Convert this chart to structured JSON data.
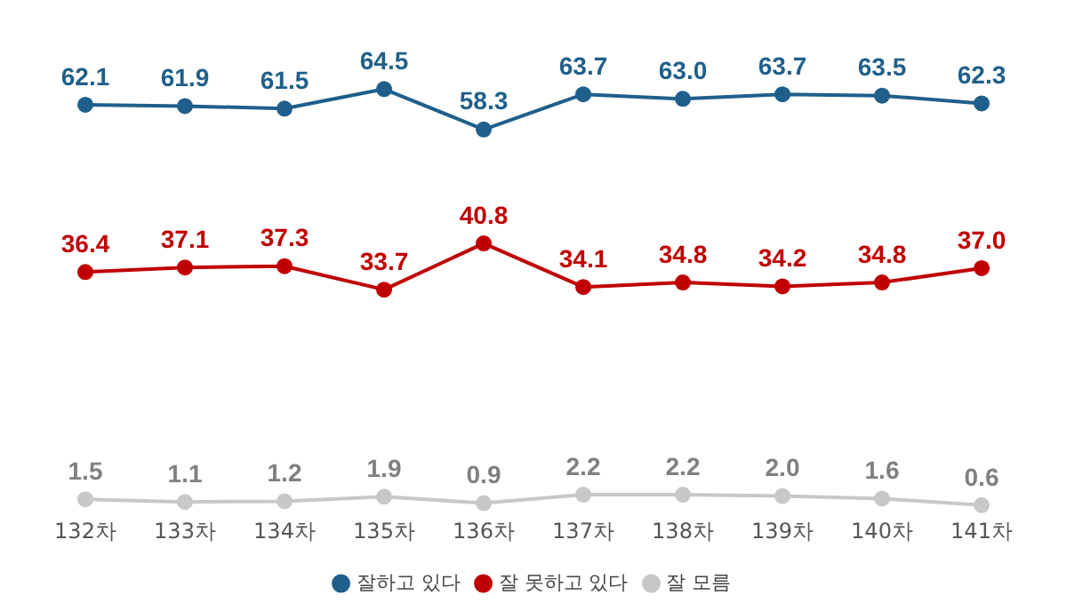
{
  "chart_data": {
    "type": "line",
    "categories": [
      "132차",
      "133차",
      "134차",
      "135차",
      "136차",
      "137차",
      "138차",
      "139차",
      "140차",
      "141차"
    ],
    "series": [
      {
        "name": "잘하고 있다",
        "color": "#1f5f8b",
        "values": [
          62.1,
          61.9,
          61.5,
          64.5,
          58.3,
          63.7,
          63.0,
          63.7,
          63.5,
          62.3
        ],
        "value_labels": [
          "62.1",
          "61.9",
          "61.5",
          "64.5",
          "58.3",
          "63.7",
          "63.0",
          "63.7",
          "63.5",
          "62.3"
        ]
      },
      {
        "name": "잘 못하고 있다",
        "color": "#c00000",
        "values": [
          36.4,
          37.1,
          37.3,
          33.7,
          40.8,
          34.1,
          34.8,
          34.2,
          34.8,
          37.0
        ],
        "value_labels": [
          "36.4",
          "37.1",
          "37.3",
          "33.7",
          "40.8",
          "34.1",
          "34.8",
          "34.2",
          "34.8",
          "37.0"
        ]
      },
      {
        "name": "잘 모름",
        "color": "#c8c8c8",
        "values": [
          1.5,
          1.1,
          1.2,
          1.9,
          0.9,
          2.2,
          2.2,
          2.0,
          1.6,
          0.6
        ],
        "value_labels": [
          "1.5",
          "1.1",
          "1.2",
          "1.9",
          "0.9",
          "2.2",
          "2.2",
          "2.0",
          "1.6",
          "0.6"
        ]
      }
    ],
    "legend": "bottom",
    "grid": false,
    "tick_labels": "x",
    "marker": "circle",
    "line_style": "solid"
  }
}
